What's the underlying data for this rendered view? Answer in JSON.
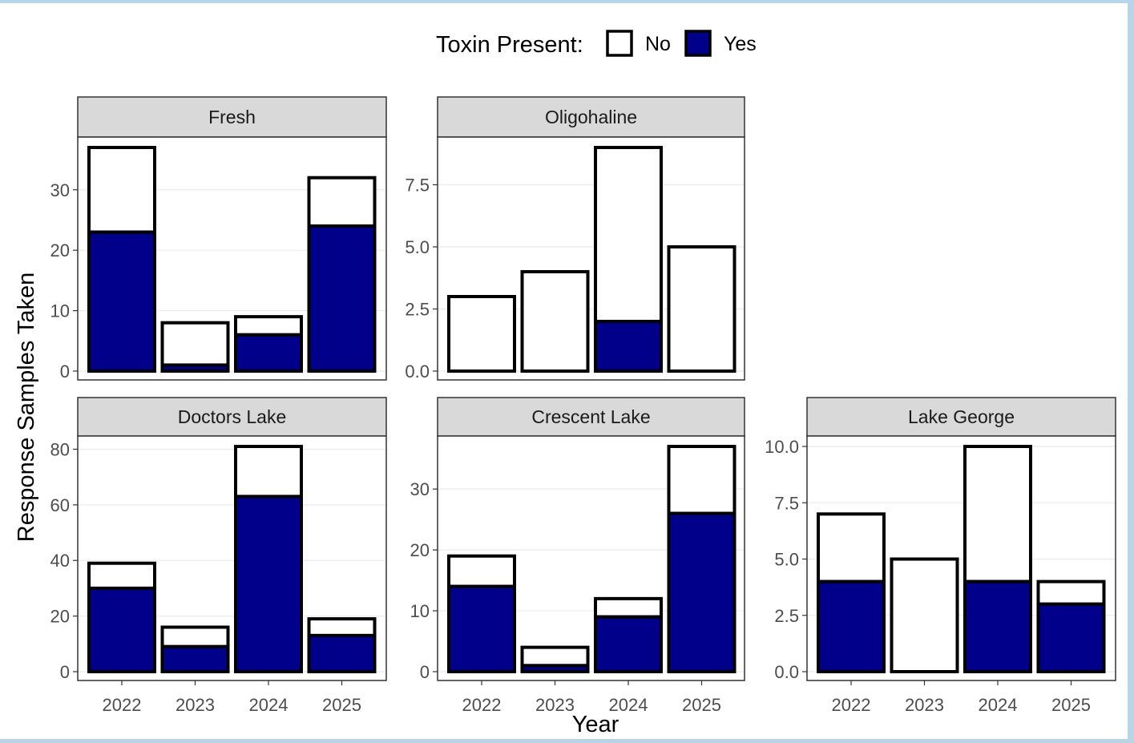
{
  "legend": {
    "title": "Toxin Present:",
    "items": [
      {
        "label": "No",
        "color": "#ffffff"
      },
      {
        "label": "Yes",
        "color": "#00008b"
      }
    ]
  },
  "axes": {
    "xlabel": "Year",
    "ylabel": "Response Samples Taken"
  },
  "colors": {
    "no": "#ffffff",
    "yes": "#00008b",
    "outline": "#000000",
    "strip_background": "#d9d9d9",
    "gridline": "#ebebeb"
  },
  "chart_data": {
    "type": "bar",
    "stacked": true,
    "facets": true,
    "categories": [
      "2022",
      "2023",
      "2024",
      "2025"
    ],
    "legend_position": "top",
    "grid": true,
    "panels": [
      {
        "name": "Fresh",
        "ylim": [
          0,
          37
        ],
        "yticks": [
          0,
          10,
          20,
          30
        ],
        "ytick_labels": [
          "0",
          "10",
          "20",
          "30"
        ],
        "show_x_ticks": false,
        "series": [
          {
            "name": "Yes",
            "values": [
              23,
              1,
              6,
              24
            ]
          },
          {
            "name": "No",
            "values": [
              14,
              7,
              3,
              8
            ]
          }
        ]
      },
      {
        "name": "Oligohaline",
        "ylim": [
          0,
          9
        ],
        "yticks": [
          0,
          2.5,
          5,
          7.5
        ],
        "ytick_labels": [
          "0.0",
          "2.5",
          "5.0",
          "7.5"
        ],
        "show_x_ticks": false,
        "series": [
          {
            "name": "Yes",
            "values": [
              0,
              0,
              2,
              0
            ]
          },
          {
            "name": "No",
            "values": [
              3,
              4,
              7,
              5
            ]
          }
        ]
      },
      {
        "name": "Doctors Lake",
        "ylim": [
          0,
          81
        ],
        "yticks": [
          0,
          20,
          40,
          60,
          80
        ],
        "ytick_labels": [
          "0",
          "20",
          "40",
          "60",
          "80"
        ],
        "show_x_ticks": true,
        "series": [
          {
            "name": "Yes",
            "values": [
              30,
              9,
              63,
              13
            ]
          },
          {
            "name": "No",
            "values": [
              9,
              7,
              18,
              6
            ]
          }
        ]
      },
      {
        "name": "Crescent Lake",
        "ylim": [
          0,
          37
        ],
        "yticks": [
          0,
          10,
          20,
          30
        ],
        "ytick_labels": [
          "0",
          "10",
          "20",
          "30"
        ],
        "show_x_ticks": true,
        "series": [
          {
            "name": "Yes",
            "values": [
              14,
              1,
              9,
              26
            ]
          },
          {
            "name": "No",
            "values": [
              5,
              3,
              3,
              11
            ]
          }
        ]
      },
      {
        "name": "Lake George",
        "ylim": [
          0,
          10
        ],
        "yticks": [
          0,
          2.5,
          5,
          7.5,
          10
        ],
        "ytick_labels": [
          "0.0",
          "2.5",
          "5.0",
          "7.5",
          "10.0"
        ],
        "show_x_ticks": true,
        "series": [
          {
            "name": "Yes",
            "values": [
              4,
              0,
              4,
              3
            ]
          },
          {
            "name": "No",
            "values": [
              3,
              5,
              6,
              1
            ]
          }
        ]
      }
    ]
  }
}
